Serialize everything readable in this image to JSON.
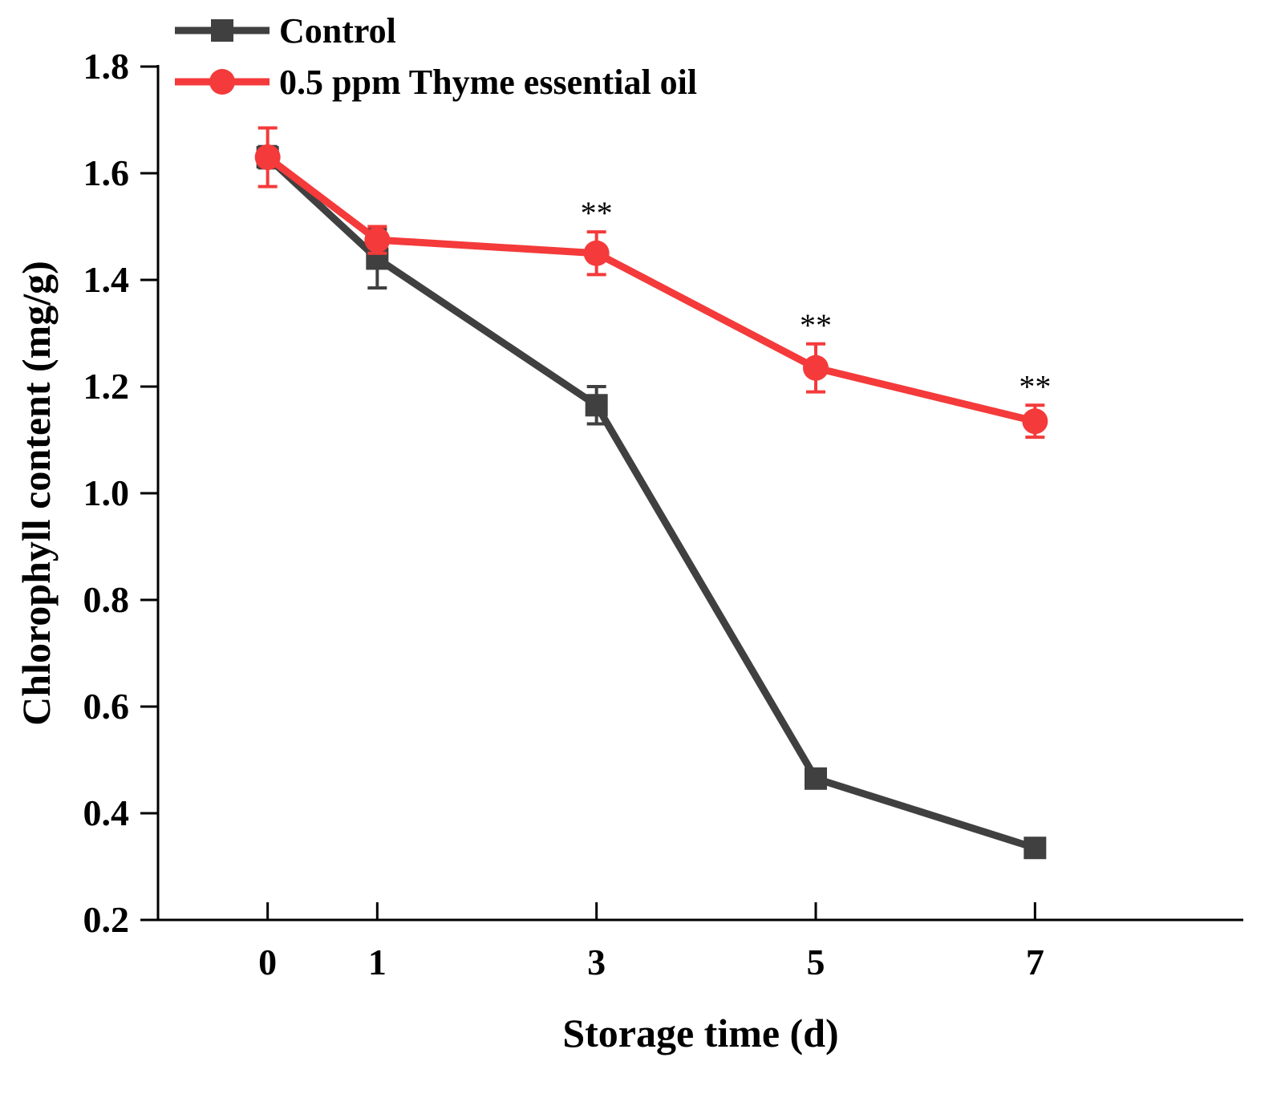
{
  "chart_data": {
    "type": "line",
    "title": "",
    "xlabel": "Storage time (d)",
    "ylabel": "Chlorophyll content (mg/g)",
    "x": [
      0,
      1,
      3,
      5,
      7
    ],
    "x_tick_labels": [
      "0",
      "1",
      "3",
      "5",
      "7"
    ],
    "xlim": [
      -1,
      8.9
    ],
    "ylim": [
      0.2,
      1.8
    ],
    "y_ticks": [
      0.2,
      0.4,
      0.6,
      0.8,
      1.0,
      1.2,
      1.4,
      1.6,
      1.8
    ],
    "y_tick_labels": [
      "0.2",
      "0.4",
      "0.6",
      "0.8",
      "1.0",
      "1.2",
      "1.4",
      "1.6",
      "1.8"
    ],
    "grid": false,
    "legend_position": "top-left",
    "series": [
      {
        "name": "Control",
        "color": "#404040",
        "marker": "square",
        "values": [
          1.63,
          1.44,
          1.165,
          0.465,
          0.335
        ],
        "errors": [
          0.02,
          0.055,
          0.035,
          0.01,
          0.01
        ]
      },
      {
        "name": "0.5 ppm Thyme essential oil",
        "color": "#f43a3a",
        "marker": "circle",
        "values": [
          1.63,
          1.475,
          1.45,
          1.235,
          1.135
        ],
        "errors": [
          0.055,
          0.025,
          0.04,
          0.045,
          0.03
        ]
      }
    ],
    "annotations": [
      {
        "x": 3,
        "text": "**"
      },
      {
        "x": 5,
        "text": "**"
      },
      {
        "x": 7,
        "text": "**"
      }
    ]
  }
}
